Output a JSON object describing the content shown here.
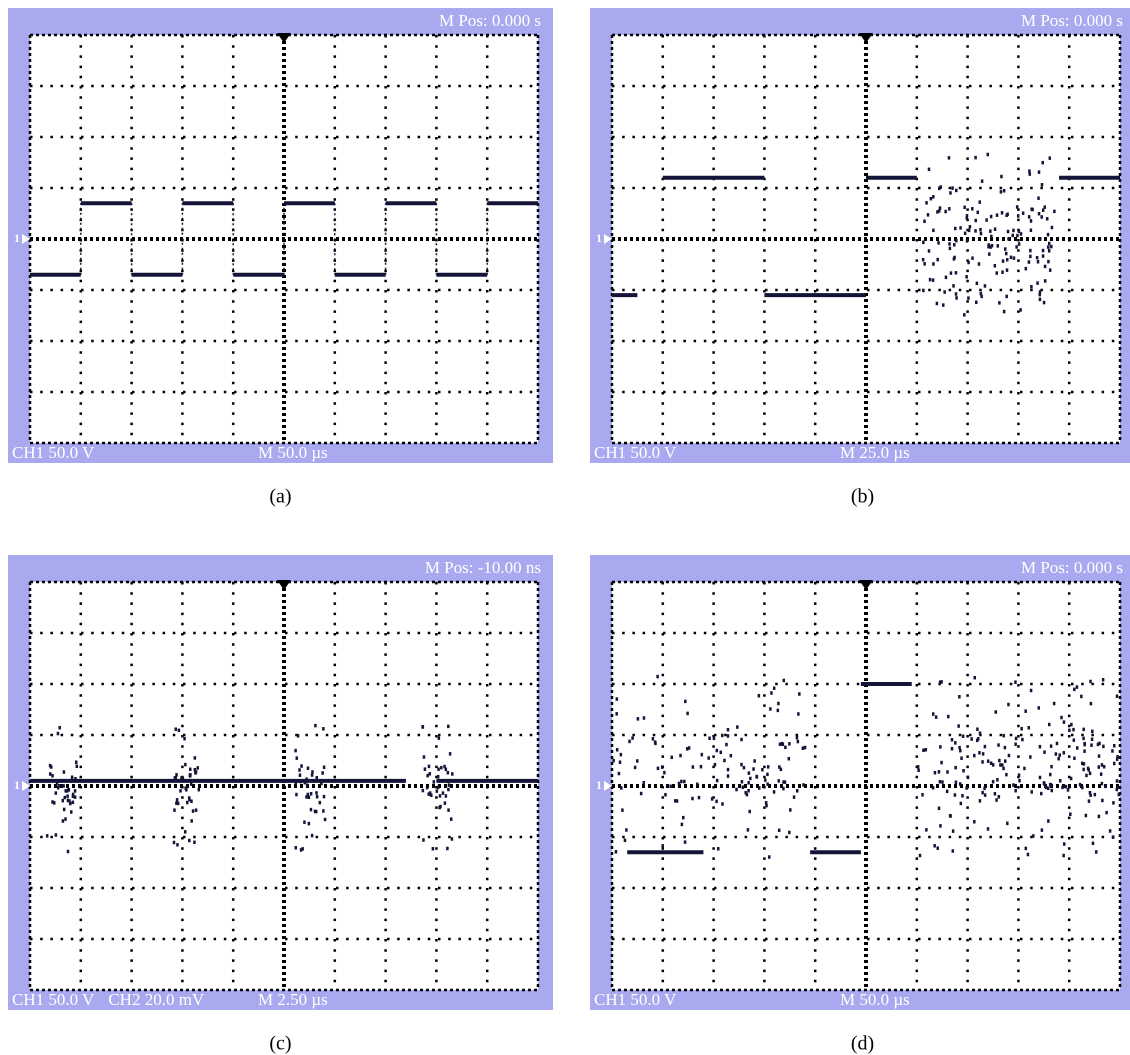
{
  "panels": [
    {
      "position": "M Pos: 0.000 s",
      "marker": "1",
      "channels": [
        "CH1 50.0 V"
      ],
      "timebase": "M 50.0 µs",
      "caption": "(a)"
    },
    {
      "position": "M Pos: 0.000 s",
      "marker": "1",
      "channels": [
        "CH1 50.0 V"
      ],
      "timebase": "M 25.0 µs",
      "caption": "(b)"
    },
    {
      "position": "M Pos: -10.00 ns",
      "marker": "1",
      "channels": [
        "CH1 50.0 V",
        "CH2 20.0 mV"
      ],
      "timebase": "M 2.50 µs",
      "caption": "(c)"
    },
    {
      "position": "M Pos: 0.000 s",
      "marker": "1",
      "channels": [
        "CH1 50.0 V"
      ],
      "timebase": "M 50.0 µs",
      "caption": "(d)"
    }
  ]
}
